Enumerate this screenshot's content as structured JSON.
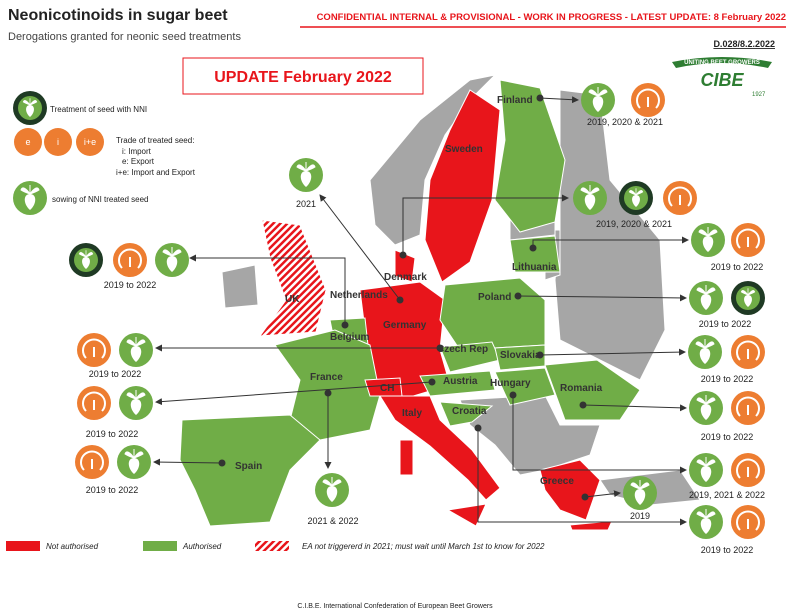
{
  "header": {
    "title": "Neonicotinoids in sugar beet",
    "subtitle": "Derogations granted for neonic seed treatments",
    "notice": "CONFIDENTIAL INTERNAL & PROVISIONAL - WORK IN PROGRESS - LATEST UPDATE: 8 February 2022",
    "reference": "D.028/8.2.2022",
    "update": "UPDATE February 2022",
    "logo": {
      "motto": "UNITING BEET GROWERS",
      "name": "CIBE",
      "year": "1927"
    }
  },
  "legend": {
    "nni": "Treatment of seed with NNI",
    "trade": "Trade of treated seed:",
    "import": "i: Import",
    "export": "e: Export",
    "both": "i+e: Import and Export",
    "sowing": "sowing of NNI treated seed",
    "badges": [
      "e",
      "i",
      "i+e"
    ]
  },
  "countries": [
    "Finland",
    "Sweden",
    "Denmark",
    "Lithuania",
    "Netherlands",
    "UK",
    "Poland",
    "Belgium",
    "Germany",
    "Czech Rep",
    "Slovakia",
    "France",
    "Austria",
    "CH",
    "Hungary",
    "Romania",
    "Italy",
    "Croatia",
    "Spain",
    "Greece"
  ],
  "callouts": [
    "2019, 2020 & 2021",
    "2021",
    "2019, 2020 & 2021",
    "2019 to 2022",
    "2019 to 2022",
    "2019 to 2022",
    "2019 to 2022",
    "2019 to 2022",
    "2019 to 2022",
    "2019 to 2022",
    "2019 to 2022",
    "2019, 2021 & 2022",
    "2019",
    "2019 to 2022",
    "2021 & 2022"
  ],
  "map_legend": {
    "not_authorised": "Not authorised",
    "authorised": "Authorised",
    "pending": "EA not triggererd in 2021; must wait until March 1st to know for 2022"
  },
  "footer": "C.I.B.E. International Confederation of European Beet Growers"
}
